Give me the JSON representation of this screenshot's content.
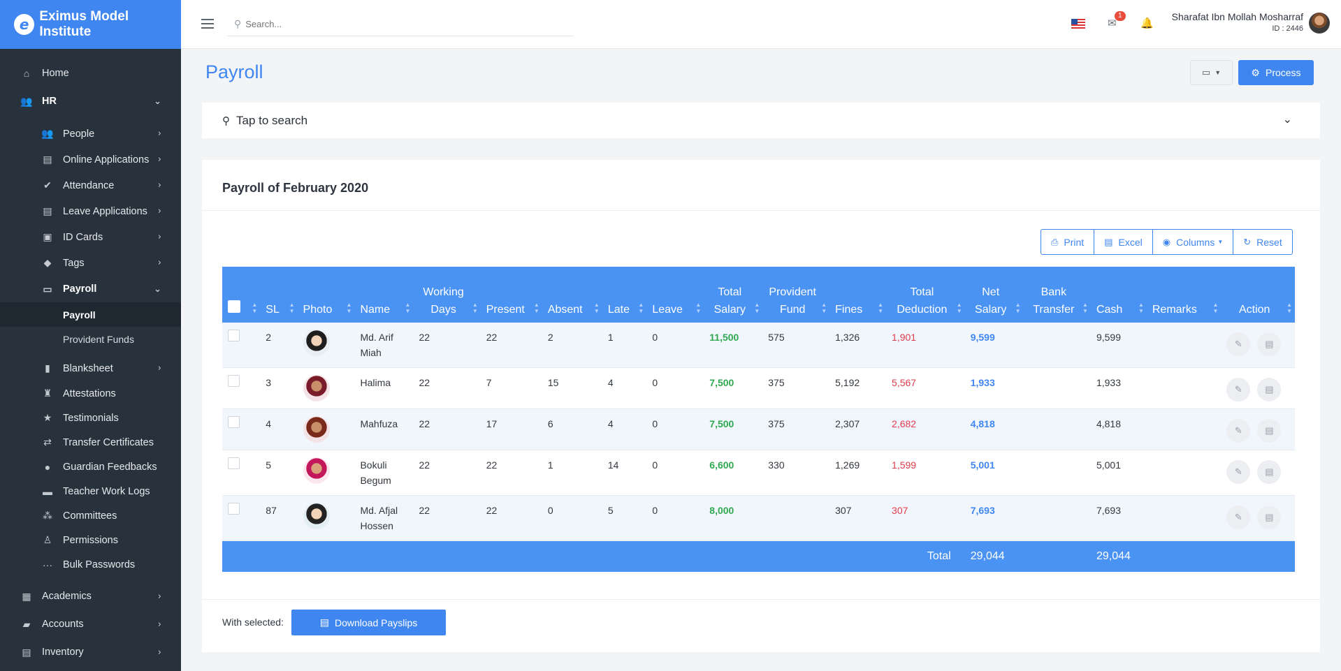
{
  "brand": {
    "name": "Eximus Model Institute",
    "logo_letter": "e"
  },
  "topbar": {
    "search_placeholder": "Search...",
    "mail_count": "1",
    "user_name": "Sharafat Ibn Mollah Mosharraf",
    "user_id": "ID : 2446"
  },
  "sidebar": {
    "home": "Home",
    "hr": "HR",
    "hr_items": [
      "People",
      "Online Applications",
      "Attendance",
      "Leave Applications",
      "ID Cards",
      "Tags",
      "Payroll"
    ],
    "payroll_sub": [
      "Payroll",
      "Provident Funds"
    ],
    "hr_items2": [
      "Blanksheet",
      "Attestations",
      "Testimonials",
      "Transfer Certificates",
      "Guardian Feedbacks",
      "Teacher Work Logs",
      "Committees",
      "Permissions",
      "Bulk Passwords"
    ],
    "academics": "Academics",
    "accounts": "Accounts",
    "inventory": "Inventory"
  },
  "page": {
    "title": "Payroll",
    "process_label": "Process",
    "tap_search": "Tap to search",
    "card_title": "Payroll of February 2020"
  },
  "toolbar": {
    "print": "Print",
    "excel": "Excel",
    "columns": "Columns",
    "reset": "Reset"
  },
  "table": {
    "headers": {
      "sl": "SL",
      "photo": "Photo",
      "name": "Name",
      "working_days_1": "Working",
      "working_days_2": "Days",
      "present": "Present",
      "absent": "Absent",
      "late": "Late",
      "leave": "Leave",
      "total_salary_1": "Total",
      "total_salary_2": "Salary",
      "provident_fund_1": "Provident",
      "provident_fund_2": "Fund",
      "fines": "Fines",
      "total_deduction_1": "Total",
      "total_deduction_2": "Deduction",
      "net_salary_1": "Net",
      "net_salary_2": "Salary",
      "bank_transfer_1": "Bank",
      "bank_transfer_2": "Transfer",
      "cash": "Cash",
      "remarks": "Remarks",
      "action": "Action"
    },
    "rows": [
      {
        "sl": "2",
        "name1": "Md. Arif",
        "name2": "Miah",
        "working_days": "22",
        "present": "22",
        "absent": "2",
        "late": "1",
        "leave": "0",
        "total_salary": "11,500",
        "provident_fund": "575",
        "fines": "1,326",
        "total_deduction": "1,901",
        "net_salary": "9,599",
        "bank_transfer": "",
        "cash": "9,599",
        "remarks": ""
      },
      {
        "sl": "3",
        "name1": "Halima",
        "name2": "",
        "working_days": "22",
        "present": "7",
        "absent": "15",
        "late": "4",
        "leave": "0",
        "total_salary": "7,500",
        "provident_fund": "375",
        "fines": "5,192",
        "total_deduction": "5,567",
        "net_salary": "1,933",
        "bank_transfer": "",
        "cash": "1,933",
        "remarks": ""
      },
      {
        "sl": "4",
        "name1": "Mahfuza",
        "name2": "",
        "working_days": "22",
        "present": "17",
        "absent": "6",
        "late": "4",
        "leave": "0",
        "total_salary": "7,500",
        "provident_fund": "375",
        "fines": "2,307",
        "total_deduction": "2,682",
        "net_salary": "4,818",
        "bank_transfer": "",
        "cash": "4,818",
        "remarks": ""
      },
      {
        "sl": "5",
        "name1": "Bokuli",
        "name2": "Begum",
        "working_days": "22",
        "present": "22",
        "absent": "1",
        "late": "14",
        "leave": "0",
        "total_salary": "6,600",
        "provident_fund": "330",
        "fines": "1,269",
        "total_deduction": "1,599",
        "net_salary": "5,001",
        "bank_transfer": "",
        "cash": "5,001",
        "remarks": ""
      },
      {
        "sl": "87",
        "name1": "Md. Afjal",
        "name2": "Hossen",
        "working_days": "22",
        "present": "22",
        "absent": "0",
        "late": "5",
        "leave": "0",
        "total_salary": "8,000",
        "provident_fund": "",
        "fines": "307",
        "total_deduction": "307",
        "net_salary": "7,693",
        "bank_transfer": "",
        "cash": "7,693",
        "remarks": ""
      }
    ],
    "footer": {
      "label": "Total",
      "net_salary": "29,044",
      "cash": "29,044"
    }
  },
  "bulk": {
    "with_selected": "With selected:",
    "download_label": "Download Payslips"
  },
  "colors": {
    "primary": "#3f86f1",
    "sidebar": "#27323d",
    "green": "#2fa84f",
    "red": "#e23c4b"
  }
}
